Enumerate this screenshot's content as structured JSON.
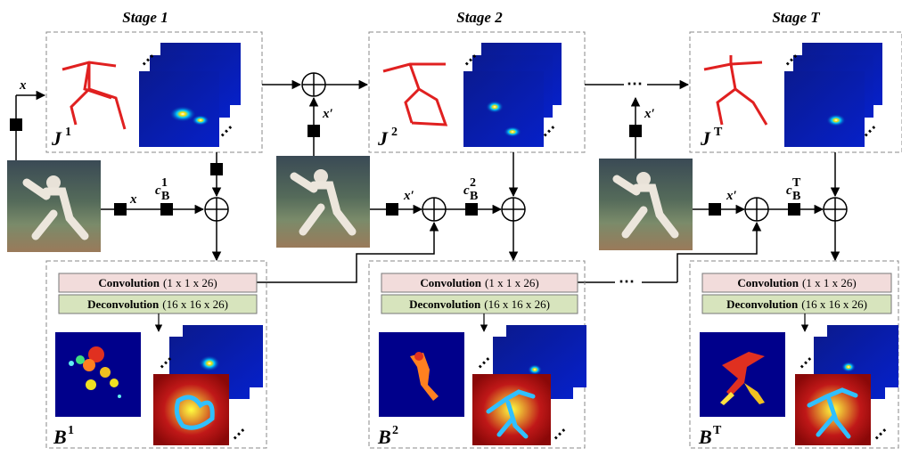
{
  "stages": [
    {
      "title": "Stage 1",
      "joint_symbol": "J",
      "joint_sup": "1",
      "body_symbol": "B",
      "body_sup": "1",
      "cb_sup": "1",
      "feature_label": "x"
    },
    {
      "title": "Stage 2",
      "joint_symbol": "J",
      "joint_sup": "2",
      "body_symbol": "B",
      "body_sup": "2",
      "cb_sup": "2",
      "feature_label": "x′"
    },
    {
      "title": "Stage T",
      "joint_symbol": "J",
      "joint_sup": "T",
      "body_symbol": "B",
      "body_sup": "T",
      "cb_sup": "T",
      "feature_label": "x′"
    }
  ],
  "ops": {
    "conv_name": "Convolution",
    "conv_params": "(1 x 1 x 26)",
    "deconv_name": "Deconvolution",
    "deconv_name_stage1": "Deconvolution",
    "deconv_params": "(16 x 16 x 26)",
    "cb_base": "c",
    "cb_sub": "B"
  },
  "inputs": {
    "x": "x",
    "x_prime": "x′"
  },
  "ellipsis": "⋯",
  "colors": {
    "conv_fill": "#f2dcdb",
    "deconv_fill": "#d7e4bd",
    "skeleton": "#e02020",
    "heatmap_bg": "#0a1fa0",
    "mask_bg": "#00008b",
    "boundary_bg": "#b01010"
  }
}
